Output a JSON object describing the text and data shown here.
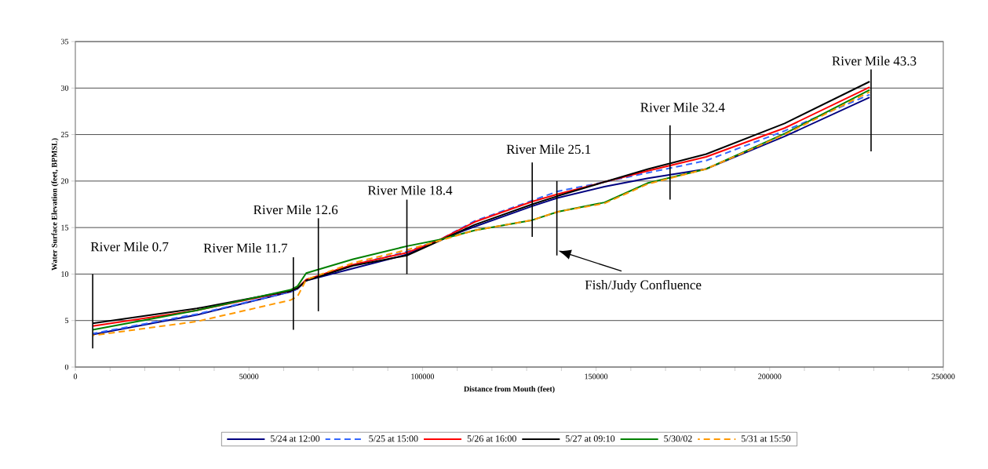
{
  "chart_data": {
    "type": "line",
    "xlabel": "Distance from Mouth (feet)",
    "ylabel": "Water Surface Elevation (feet, BPMSL)",
    "x": [
      5000,
      35000,
      62000,
      64000,
      66500,
      80000,
      95500,
      105000,
      115000,
      131600,
      139000,
      152400,
      165000,
      181700,
      204300,
      228800
    ],
    "series": [
      {
        "name": "5/24 at 12:00",
        "color": "#000080",
        "line_style": "solid",
        "values": [
          3.5,
          5.6,
          8.1,
          8.4,
          9.3,
          10.6,
          12.1,
          13.7,
          15.1,
          17.3,
          18.2,
          19.4,
          20.3,
          21.3,
          24.8,
          29.0
        ]
      },
      {
        "name": "5/25 at 15:00",
        "color": "#3366ff",
        "line_style": "dashed",
        "values": [
          3.6,
          5.7,
          8.1,
          8.4,
          9.4,
          11.0,
          12.4,
          13.7,
          15.7,
          17.9,
          18.9,
          19.9,
          20.9,
          22.2,
          25.4,
          29.3
        ]
      },
      {
        "name": "5/26 at 16:00",
        "color": "#ff0000",
        "line_style": "solid",
        "values": [
          4.4,
          6.1,
          8.2,
          8.5,
          9.4,
          11.0,
          12.3,
          13.7,
          15.6,
          17.8,
          18.6,
          19.9,
          21.1,
          22.6,
          25.7,
          30.1
        ]
      },
      {
        "name": "5/27 at 09:10",
        "color": "#000000",
        "line_style": "solid",
        "values": [
          4.7,
          6.3,
          8.2,
          8.5,
          9.3,
          10.9,
          12.0,
          13.6,
          15.3,
          17.5,
          18.4,
          19.9,
          21.3,
          22.9,
          26.2,
          30.7
        ]
      },
      {
        "name": "5/30/02",
        "color": "#008000",
        "line_style": "solid",
        "values": [
          4.0,
          6.1,
          8.3,
          8.7,
          10.1,
          11.6,
          13.0,
          13.7,
          14.7,
          15.8,
          16.7,
          17.7,
          19.8,
          21.3,
          25.1,
          29.8
        ]
      },
      {
        "name": "5/31 at 15:50",
        "color": "#ff9900",
        "line_style": "dashed",
        "values": [
          3.4,
          4.9,
          7.2,
          7.6,
          9.4,
          11.2,
          12.6,
          13.6,
          14.7,
          15.8,
          16.7,
          17.6,
          19.7,
          21.3,
          25.0,
          29.6
        ]
      },
      {
        "color": "#000000",
        "x": [
          5000,
          5000
        ],
        "values": [
          2,
          10
        ]
      },
      {
        "color": "#000000",
        "x": [
          62800,
          62800
        ],
        "values": [
          4,
          11.8
        ]
      },
      {
        "color": "#000000",
        "x": [
          70000,
          70000
        ],
        "values": [
          6,
          16
        ]
      },
      {
        "color": "#000000",
        "x": [
          95500,
          95500
        ],
        "values": [
          10,
          18
        ]
      },
      {
        "color": "#000000",
        "x": [
          131600,
          131600
        ],
        "values": [
          14,
          22
        ]
      },
      {
        "color": "#000000",
        "x": [
          171300,
          171300
        ],
        "values": [
          18,
          26
        ]
      },
      {
        "color": "#000000",
        "x": [
          229200,
          229200
        ],
        "values": [
          23.2,
          32
        ]
      },
      {
        "color": "#000000",
        "x": [
          138700,
          138700
        ],
        "values": [
          12,
          20
        ]
      }
    ],
    "xlim": [
      0,
      250000
    ],
    "ylim": [
      0,
      35
    ],
    "xticks": [
      0,
      {
        "value": 10000,
        "label": null
      },
      {
        "value": 20000,
        "label": null
      },
      {
        "value": 30000,
        "label": null
      },
      {
        "value": 40000,
        "label": null
      },
      50000,
      {
        "value": 60000,
        "label": null
      },
      {
        "value": 70000,
        "label": null
      },
      {
        "value": 80000,
        "label": null
      },
      {
        "value": 90000,
        "label": null
      },
      100000,
      {
        "value": 110000,
        "label": null
      },
      {
        "value": 120000,
        "label": null
      },
      {
        "value": 130000,
        "label": null
      },
      {
        "value": 140000,
        "label": null
      },
      150000,
      {
        "value": 160000,
        "label": null
      },
      {
        "value": 170000,
        "label": null
      },
      {
        "value": 180000,
        "label": null
      },
      {
        "value": 190000,
        "label": null
      },
      200000,
      {
        "value": 210000,
        "label": null
      },
      {
        "value": 220000,
        "label": null
      },
      {
        "value": 230000,
        "label": null
      },
      {
        "value": 240000,
        "label": null
      },
      250000
    ],
    "yticks": [
      0,
      5,
      10,
      15,
      20,
      25,
      30,
      35
    ],
    "grid": "y",
    "legend": "bottom",
    "annotations": [
      {
        "text": "River Mile 0.7",
        "x": 5000,
        "y": 10
      },
      {
        "text": "River Mile 11.7",
        "x": 62800,
        "y": 11.8
      },
      {
        "text": "River Mile 12.6",
        "x": 70000,
        "y": 16
      },
      {
        "text": "River Mile 18.4",
        "x": 95500,
        "y": 18
      },
      {
        "text": "River Mile 25.1",
        "x": 131600,
        "y": 22
      },
      {
        "text": "River Mile 32.4",
        "x": 171300,
        "y": 26
      },
      {
        "text": "River Mile 43.3",
        "x": 229200,
        "y": 32
      },
      {
        "text": "Fish/Judy Confluence",
        "x": 138700,
        "y": 12
      }
    ]
  }
}
